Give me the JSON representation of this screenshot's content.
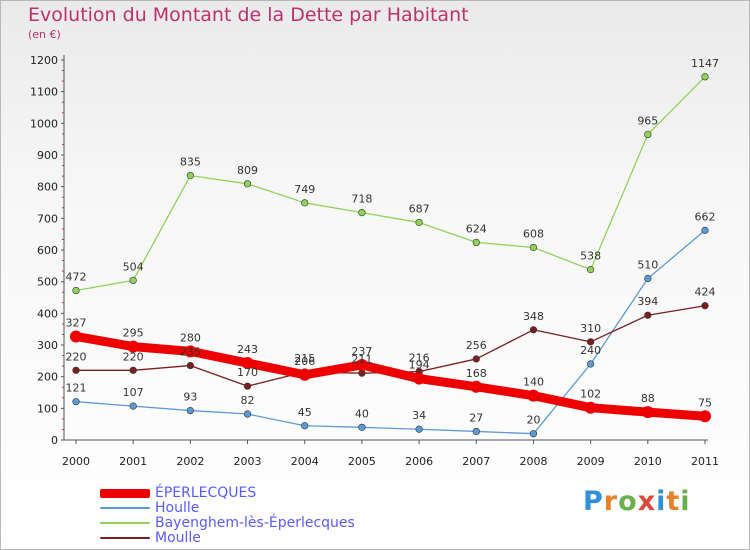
{
  "header": {
    "title": "Evolution du Montant de la Dette par Habitant",
    "unit": "(en €)"
  },
  "brand": {
    "letters": [
      "P",
      "r",
      "o",
      "x",
      "i",
      "t",
      "i"
    ],
    "colors": [
      "#2f8fd8",
      "#e8822a",
      "#6ab04c",
      "#d94a3a",
      "#2f8fd8",
      "#e8822a",
      "#6ab04c"
    ]
  },
  "chart_data": {
    "type": "line",
    "title": "Evolution du Montant de la Dette par Habitant",
    "ylabel": "(en €)",
    "xlabel": "",
    "x": [
      "2000",
      "2001",
      "2002",
      "2003",
      "2004",
      "2005",
      "2006",
      "2007",
      "2008",
      "2009",
      "2010",
      "2011"
    ],
    "ylim": [
      0,
      1200
    ],
    "yticks": [
      0,
      100,
      200,
      300,
      400,
      500,
      600,
      700,
      800,
      900,
      1000,
      1100,
      1200
    ],
    "grid": false,
    "legend_position": "bottom-left",
    "series": [
      {
        "name": "ÉPERLECQUES",
        "color": "#ee0000",
        "values": [
          327,
          295,
          280,
          243,
          206,
          237,
          194,
          168,
          140,
          102,
          88,
          75
        ]
      },
      {
        "name": "Houlle",
        "color": "#5b9bd5",
        "values": [
          121,
          107,
          93,
          82,
          45,
          40,
          34,
          27,
          20,
          240,
          510,
          662
        ]
      },
      {
        "name": "Bayenghem-lès-Éperlecques",
        "color": "#8fd45a",
        "values": [
          472,
          504,
          835,
          809,
          749,
          718,
          687,
          624,
          608,
          538,
          965,
          1147
        ]
      },
      {
        "name": "Moulle",
        "color": "#7a1f1f",
        "values": [
          220,
          220,
          235,
          170,
          215,
          211,
          216,
          256,
          348,
          310,
          394,
          424
        ]
      }
    ]
  }
}
